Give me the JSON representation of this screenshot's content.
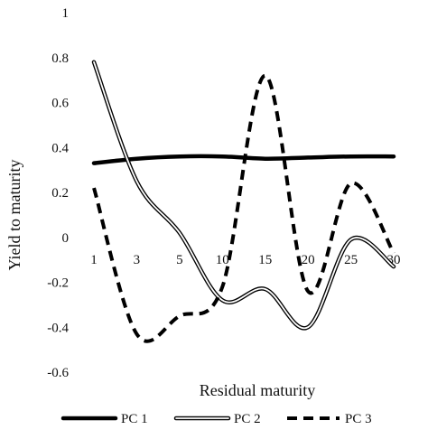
{
  "chart_data": {
    "type": "line",
    "categories": [
      "1",
      "3",
      "5",
      "10",
      "15",
      "20",
      "25",
      "30"
    ],
    "ylim": [
      -0.6,
      1
    ],
    "yticks": [
      "1",
      "0.8",
      "0.6",
      "0.4",
      "0.2",
      "0",
      "-0.2",
      "-0.4",
      "-0.6"
    ],
    "xlabel": "Residual maturity",
    "ylabel": "Yield to maturity",
    "legend_position": "bottom",
    "series": [
      {
        "name": "PC 1",
        "style": "solid-thick",
        "color": "#000000",
        "values": [
          0.33,
          0.35,
          0.36,
          0.36,
          0.35,
          0.355,
          0.36,
          0.36
        ]
      },
      {
        "name": "PC 2",
        "style": "double",
        "color": "#000000",
        "values": [
          0.78,
          0.25,
          0.02,
          -0.28,
          -0.23,
          -0.4,
          -0.01,
          -0.13
        ]
      },
      {
        "name": "PC 3",
        "style": "dashed",
        "color": "#000000",
        "values": [
          0.22,
          -0.43,
          -0.35,
          -0.22,
          0.72,
          -0.24,
          0.24,
          -0.07
        ]
      }
    ]
  }
}
